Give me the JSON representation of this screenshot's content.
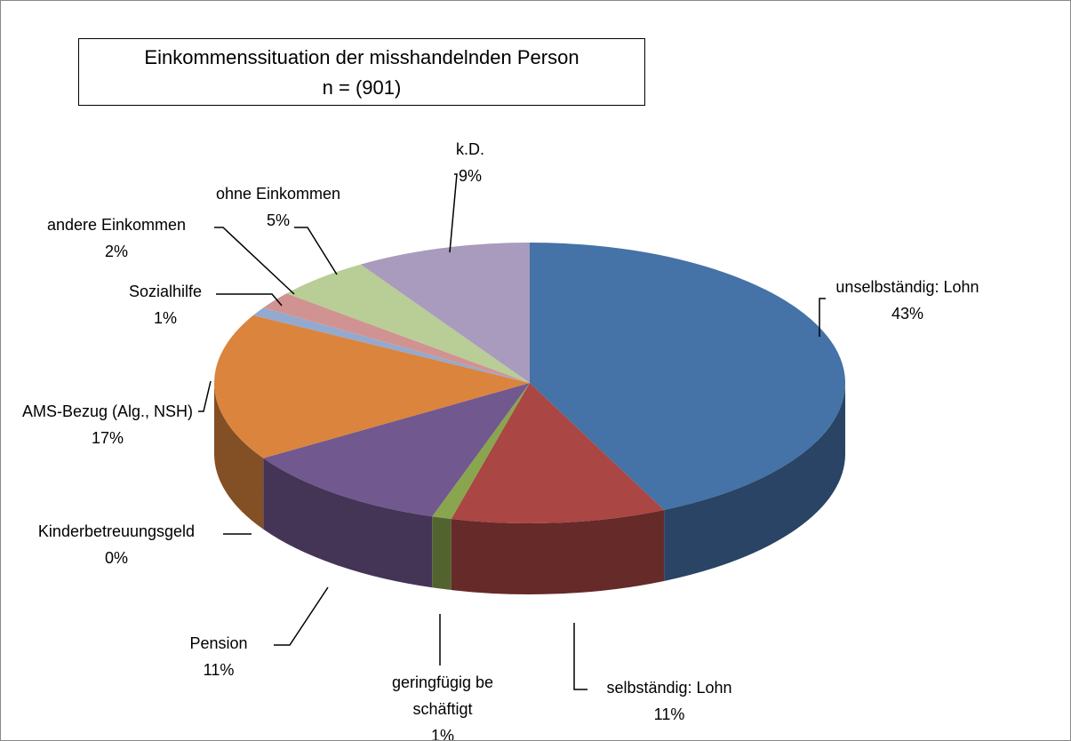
{
  "chart_data": {
    "type": "pie3d",
    "title": "Einkommenssituation der misshandelnden Person",
    "subtitle": "n = (901)",
    "categories": [
      "unselbständig: Lohn",
      "selbständig: Lohn",
      "geringfügig beschäftigt",
      "Pension",
      "Kinderbetreuungsgeld",
      "AMS-Bezug (Alg., NSH)",
      "Sozialhilfe",
      "andere Einkommen",
      "ohne Einkommen",
      "k.D."
    ],
    "values": [
      43,
      11,
      1,
      11,
      0,
      17,
      1,
      2,
      5,
      9
    ],
    "value_labels": [
      "43%",
      "11%",
      "1%",
      "11%",
      "0%",
      "17%",
      "1%",
      "2%",
      "5%",
      "9%"
    ],
    "colors": [
      "#4572a7",
      "#aa4643",
      "#89a54e",
      "#71588f",
      "#4198af",
      "#db843d",
      "#93a9cf",
      "#d19392",
      "#b9cd96",
      "#a99bbd"
    ]
  }
}
